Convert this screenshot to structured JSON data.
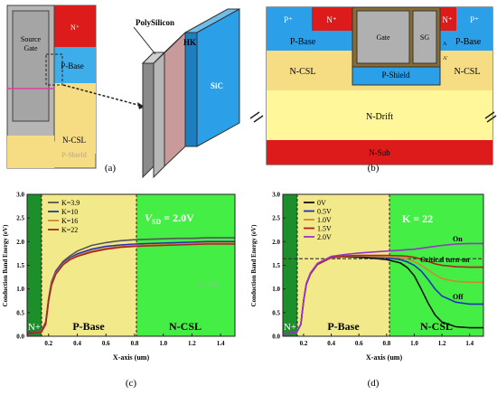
{
  "panel_a": {
    "caption": "(a)",
    "labels": {
      "source_gate_1": "Source",
      "source_gate_2": "Gate",
      "n_plus": "N⁺",
      "p_base": "P-Base",
      "n_csl": "N-CSL",
      "p_shield": "P-Shield",
      "polysilicon": "PolySilicon",
      "hk": "HK",
      "sic": "SiC"
    }
  },
  "panel_b": {
    "caption": "(b)",
    "labels": {
      "p_plus": "P⁺",
      "n_plus": "N⁺",
      "gate": "Gate",
      "sg": "SG",
      "p_base": "P-Base",
      "a": "A",
      "a_prime": "A'",
      "n_csl": "N-CSL",
      "p_shield": "P-Shield",
      "n_drift": "N-Drift",
      "n_sub": "N-Sub"
    }
  },
  "panel_c": {
    "caption": "(c)",
    "region_labels": [
      "N+",
      "P-Base",
      "N-CSL"
    ],
    "annotation_prefix": "V",
    "annotation_sub": "SD",
    "annotation_suffix": " = 2.0V",
    "faint_label": "N-Drift",
    "chart_data": {
      "type": "line",
      "xlabel": "X-axis (um)",
      "ylabel": "Conduction Band Energy (eV)",
      "xlim": [
        0.05,
        1.5
      ],
      "ylim": [
        0,
        3.0
      ],
      "xticks": [
        "0.2",
        "0.4",
        "0.6",
        "0.8",
        "1.0",
        "1.2",
        "1.4"
      ],
      "yticks": [
        "0.0",
        "0.5",
        "1.0",
        "1.5",
        "2.0",
        "2.5",
        "3.0"
      ],
      "legend_position": "top-left",
      "series": [
        {
          "name": "K=3.9",
          "color": "#555555",
          "x": [
            0.05,
            0.15,
            0.18,
            0.2,
            0.22,
            0.25,
            0.3,
            0.35,
            0.4,
            0.5,
            0.6,
            0.7,
            0.8,
            0.9,
            1.0,
            1.1,
            1.2,
            1.3,
            1.4,
            1.5
          ],
          "y": [
            0.08,
            0.12,
            0.3,
            0.8,
            1.15,
            1.38,
            1.58,
            1.7,
            1.8,
            1.92,
            1.98,
            2.02,
            2.04,
            2.05,
            2.06,
            2.07,
            2.07,
            2.08,
            2.08,
            2.08
          ]
        },
        {
          "name": "K=10",
          "color": "#2233bb",
          "x": [
            0.05,
            0.15,
            0.18,
            0.2,
            0.22,
            0.25,
            0.3,
            0.35,
            0.4,
            0.5,
            0.6,
            0.7,
            0.8,
            0.9,
            1.0,
            1.1,
            1.2,
            1.3,
            1.4,
            1.5
          ],
          "y": [
            0.06,
            0.1,
            0.28,
            0.78,
            1.12,
            1.35,
            1.55,
            1.66,
            1.74,
            1.84,
            1.9,
            1.93,
            1.95,
            1.96,
            1.97,
            1.98,
            1.99,
            2.0,
            2.0,
            2.0
          ]
        },
        {
          "name": "K=16",
          "color": "#cc8833",
          "x": [
            0.05,
            0.15,
            0.18,
            0.2,
            0.22,
            0.25,
            0.3,
            0.35,
            0.4,
            0.5,
            0.6,
            0.7,
            0.8,
            0.9,
            1.0,
            1.1,
            1.2,
            1.3,
            1.4,
            1.5
          ],
          "y": [
            0.05,
            0.1,
            0.26,
            0.76,
            1.1,
            1.33,
            1.53,
            1.64,
            1.71,
            1.8,
            1.86,
            1.9,
            1.92,
            1.93,
            1.94,
            1.95,
            1.96,
            1.97,
            1.97,
            1.97
          ]
        },
        {
          "name": "K=22",
          "color": "#aa2222",
          "x": [
            0.05,
            0.15,
            0.18,
            0.2,
            0.22,
            0.25,
            0.3,
            0.35,
            0.4,
            0.5,
            0.6,
            0.7,
            0.8,
            0.9,
            1.0,
            1.1,
            1.2,
            1.3,
            1.4,
            1.5
          ],
          "y": [
            0.05,
            0.09,
            0.25,
            0.75,
            1.08,
            1.31,
            1.51,
            1.62,
            1.69,
            1.78,
            1.84,
            1.88,
            1.9,
            1.91,
            1.92,
            1.93,
            1.94,
            1.95,
            1.95,
            1.95
          ]
        }
      ]
    }
  },
  "panel_d": {
    "caption": "(d)",
    "region_labels": [
      "N+",
      "P-Base",
      "N-CSL"
    ],
    "annotation": "K = 22",
    "curve_labels": {
      "on": "On",
      "critical": "Critical turn-on",
      "off": "Off"
    },
    "chart_data": {
      "type": "line",
      "xlabel": "X-axis (um)",
      "ylabel": "Conduction Band Energy (eV)",
      "xlim": [
        0.05,
        1.5
      ],
      "ylim": [
        0,
        3.0
      ],
      "xticks": [
        "0.2",
        "0.4",
        "0.6",
        "0.8",
        "1.0",
        "1.2",
        "1.4"
      ],
      "yticks": [
        "0.0",
        "0.5",
        "1.0",
        "1.5",
        "2.0",
        "2.5",
        "3.0"
      ],
      "legend_position": "top-left",
      "series": [
        {
          "name": "0V",
          "color": "#111111",
          "x": [
            0.05,
            0.15,
            0.18,
            0.2,
            0.22,
            0.25,
            0.3,
            0.4,
            0.5,
            0.6,
            0.7,
            0.8,
            0.9,
            0.95,
            1.0,
            1.05,
            1.1,
            1.15,
            1.2,
            1.3,
            1.4,
            1.5
          ],
          "y": [
            0.05,
            0.08,
            0.25,
            0.75,
            1.1,
            1.32,
            1.52,
            1.66,
            1.68,
            1.67,
            1.65,
            1.62,
            1.55,
            1.45,
            1.28,
            1.0,
            0.7,
            0.45,
            0.3,
            0.2,
            0.18,
            0.18
          ]
        },
        {
          "name": "0.5V",
          "color": "#2233bb",
          "x": [
            0.05,
            0.15,
            0.18,
            0.2,
            0.22,
            0.25,
            0.3,
            0.4,
            0.5,
            0.6,
            0.7,
            0.8,
            0.9,
            0.95,
            1.0,
            1.05,
            1.1,
            1.15,
            1.2,
            1.3,
            1.4,
            1.5
          ],
          "y": [
            0.05,
            0.08,
            0.25,
            0.75,
            1.1,
            1.32,
            1.52,
            1.66,
            1.69,
            1.69,
            1.68,
            1.66,
            1.62,
            1.57,
            1.5,
            1.38,
            1.2,
            1.0,
            0.85,
            0.72,
            0.68,
            0.68
          ]
        },
        {
          "name": "1.0V",
          "color": "#cc8833",
          "x": [
            0.05,
            0.15,
            0.18,
            0.2,
            0.22,
            0.25,
            0.3,
            0.4,
            0.5,
            0.6,
            0.7,
            0.8,
            0.9,
            0.95,
            1.0,
            1.05,
            1.1,
            1.15,
            1.2,
            1.3,
            1.4,
            1.5
          ],
          "y": [
            0.05,
            0.08,
            0.25,
            0.75,
            1.1,
            1.32,
            1.52,
            1.66,
            1.69,
            1.7,
            1.69,
            1.68,
            1.66,
            1.63,
            1.58,
            1.5,
            1.4,
            1.3,
            1.22,
            1.16,
            1.14,
            1.14
          ]
        },
        {
          "name": "1.5V",
          "color": "#aa2222",
          "x": [
            0.05,
            0.15,
            0.18,
            0.2,
            0.22,
            0.25,
            0.3,
            0.4,
            0.5,
            0.6,
            0.7,
            0.8,
            0.9,
            0.95,
            1.0,
            1.05,
            1.1,
            1.15,
            1.2,
            1.3,
            1.4,
            1.5
          ],
          "y": [
            0.05,
            0.08,
            0.25,
            0.75,
            1.1,
            1.32,
            1.52,
            1.67,
            1.7,
            1.71,
            1.71,
            1.71,
            1.7,
            1.69,
            1.67,
            1.63,
            1.58,
            1.53,
            1.5,
            1.47,
            1.46,
            1.46
          ]
        },
        {
          "name": "2.0V",
          "color": "#9933cc",
          "x": [
            0.05,
            0.15,
            0.18,
            0.2,
            0.22,
            0.25,
            0.3,
            0.4,
            0.5,
            0.6,
            0.7,
            0.8,
            0.9,
            0.95,
            1.0,
            1.05,
            1.1,
            1.15,
            1.2,
            1.3,
            1.4,
            1.5
          ],
          "y": [
            0.05,
            0.08,
            0.25,
            0.76,
            1.12,
            1.34,
            1.54,
            1.69,
            1.73,
            1.76,
            1.78,
            1.8,
            1.82,
            1.83,
            1.84,
            1.86,
            1.88,
            1.9,
            1.92,
            1.95,
            1.96,
            1.96
          ]
        }
      ],
      "reference_line": {
        "name": "Critical turn-on",
        "y": 1.64,
        "style": "dashed"
      }
    }
  }
}
